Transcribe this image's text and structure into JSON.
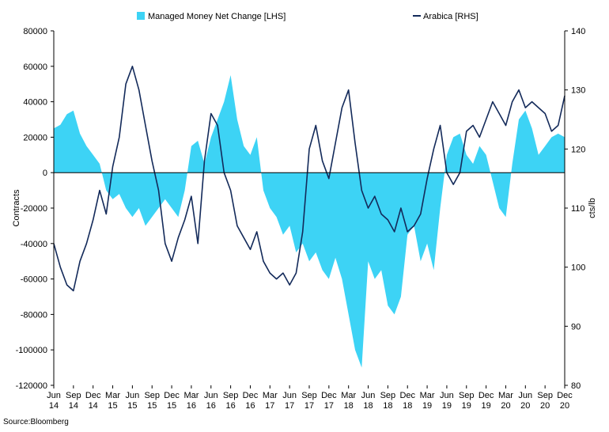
{
  "chart_data": {
    "type": "area",
    "source": "Source:Bloomberg",
    "colors": {
      "area": "#3dd3f5",
      "line": "#132a5a",
      "axis": "#000000"
    },
    "y_left": {
      "label": "Contracts",
      "lim": [
        -120000,
        80000
      ],
      "ticks": [
        "80000",
        "60000",
        "40000",
        "20000",
        "0",
        "-20000",
        "-40000",
        "-60000",
        "-80000",
        "-100000",
        "-120000"
      ]
    },
    "y_right": {
      "label": "cts/lb",
      "lim": [
        80,
        140
      ],
      "ticks": [
        "140",
        "130",
        "120",
        "110",
        "100",
        "90",
        "80"
      ]
    },
    "x_range": [
      0,
      78
    ],
    "x_ticks": [
      {
        "month": "Jun",
        "year": "14"
      },
      {
        "month": "Sep",
        "year": "14"
      },
      {
        "month": "Dec",
        "year": "14"
      },
      {
        "month": "Mar",
        "year": "15"
      },
      {
        "month": "Jun",
        "year": "15"
      },
      {
        "month": "Sep",
        "year": "15"
      },
      {
        "month": "Dec",
        "year": "15"
      },
      {
        "month": "Mar",
        "year": "16"
      },
      {
        "month": "Jun",
        "year": "16"
      },
      {
        "month": "Sep",
        "year": "16"
      },
      {
        "month": "Dec",
        "year": "16"
      },
      {
        "month": "Mar",
        "year": "17"
      },
      {
        "month": "Jun",
        "year": "17"
      },
      {
        "month": "Sep",
        "year": "17"
      },
      {
        "month": "Dec",
        "year": "17"
      },
      {
        "month": "Mar",
        "year": "18"
      },
      {
        "month": "Jun",
        "year": "18"
      },
      {
        "month": "Sep",
        "year": "18"
      },
      {
        "month": "Dec",
        "year": "18"
      },
      {
        "month": "Mar",
        "year": "19"
      },
      {
        "month": "Jun",
        "year": "19"
      },
      {
        "month": "Sep",
        "year": "19"
      },
      {
        "month": "Dec",
        "year": "19"
      },
      {
        "month": "Mar",
        "year": "20"
      },
      {
        "month": "Jun",
        "year": "20"
      },
      {
        "month": "Sep",
        "year": "20"
      },
      {
        "month": "Dec",
        "year": "20"
      }
    ],
    "series": [
      {
        "name": "Managed Money Net Change [LHS]",
        "type": "area",
        "axis": "left",
        "x": [
          0,
          1,
          2,
          3,
          4,
          5,
          6,
          7,
          8,
          9,
          10,
          11,
          12,
          13,
          14,
          15,
          16,
          17,
          18,
          19,
          20,
          21,
          22,
          23,
          24,
          25,
          26,
          27,
          28,
          29,
          30,
          31,
          32,
          33,
          34,
          35,
          36,
          37,
          38,
          39,
          40,
          41,
          42,
          43,
          44,
          45,
          46,
          47,
          48,
          49,
          50,
          51,
          52,
          53,
          54,
          55,
          56,
          57,
          58,
          59,
          60,
          61,
          62,
          63,
          64,
          65,
          66,
          67,
          68,
          69,
          70,
          71,
          72,
          73,
          74,
          75,
          76,
          77,
          78
        ],
        "values": [
          25000,
          27000,
          33000,
          35000,
          22000,
          15000,
          10000,
          5000,
          -10000,
          -15000,
          -12000,
          -20000,
          -25000,
          -20000,
          -30000,
          -25000,
          -20000,
          -15000,
          -20000,
          -25000,
          -10000,
          15000,
          18000,
          5000,
          20000,
          30000,
          40000,
          55000,
          30000,
          15000,
          10000,
          20000,
          -10000,
          -20000,
          -25000,
          -35000,
          -30000,
          -45000,
          -40000,
          -50000,
          -45000,
          -55000,
          -60000,
          -48000,
          -60000,
          -80000,
          -100000,
          -110000,
          -50000,
          -60000,
          -55000,
          -75000,
          -80000,
          -70000,
          -35000,
          -30000,
          -50000,
          -40000,
          -55000,
          -20000,
          10000,
          20000,
          22000,
          10000,
          5000,
          15000,
          10000,
          -5000,
          -20000,
          -25000,
          5000,
          30000,
          35000,
          25000,
          10000,
          15000,
          20000,
          22000,
          20000
        ]
      },
      {
        "name": "Arabica [RHS]",
        "type": "line",
        "axis": "right",
        "x": [
          0,
          1,
          2,
          3,
          4,
          5,
          6,
          7,
          8,
          9,
          10,
          11,
          12,
          13,
          14,
          15,
          16,
          17,
          18,
          19,
          20,
          21,
          22,
          23,
          24,
          25,
          26,
          27,
          28,
          29,
          30,
          31,
          32,
          33,
          34,
          35,
          36,
          37,
          38,
          39,
          40,
          41,
          42,
          43,
          44,
          45,
          46,
          47,
          48,
          49,
          50,
          51,
          52,
          53,
          54,
          55,
          56,
          57,
          58,
          59,
          60,
          61,
          62,
          63,
          64,
          65,
          66,
          67,
          68,
          69,
          70,
          71,
          72,
          73,
          74,
          75,
          76,
          77,
          78
        ],
        "values": [
          104,
          100,
          97,
          96,
          101,
          104,
          108,
          113,
          109,
          117,
          122,
          131,
          134,
          130,
          124,
          118,
          113,
          104,
          101,
          105,
          108,
          112,
          104,
          118,
          126,
          124,
          116,
          113,
          107,
          105,
          103,
          106,
          101,
          99,
          98,
          99,
          97,
          99,
          106,
          120,
          124,
          118,
          115,
          121,
          127,
          130,
          121,
          113,
          110,
          112,
          109,
          108,
          106,
          110,
          106,
          107,
          109,
          115,
          120,
          124,
          116,
          114,
          116,
          123,
          124,
          122,
          125,
          128,
          126,
          124,
          128,
          130,
          127,
          128,
          127,
          126,
          123,
          124,
          129
        ]
      }
    ]
  }
}
